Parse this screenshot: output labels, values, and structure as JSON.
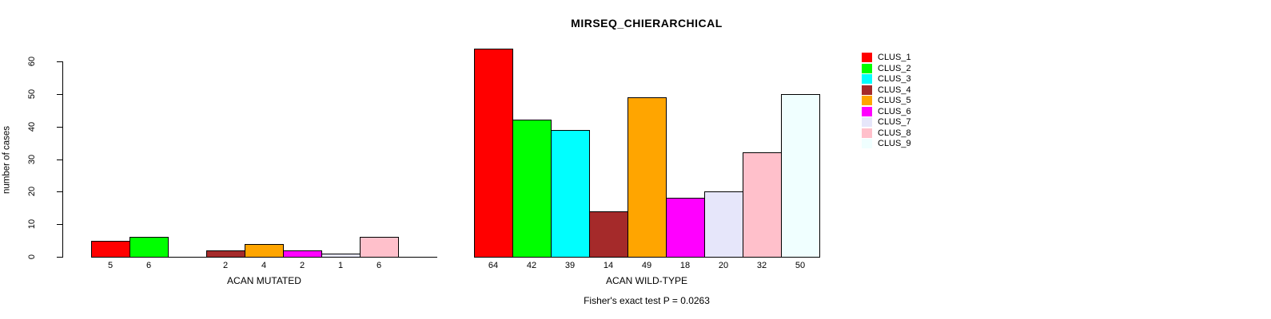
{
  "title": "MIRSEQ_CHIERARCHICAL",
  "chart_data": {
    "type": "bar",
    "title": "MIRSEQ_CHIERARCHICAL",
    "ylabel": "number of cases",
    "ylim": [
      0,
      60
    ],
    "yticks": [
      0,
      10,
      20,
      30,
      40,
      50,
      60
    ],
    "grid": false,
    "legend_position": "right",
    "legend": [
      {
        "name": "CLUS_1",
        "color": "#FF0000"
      },
      {
        "name": "CLUS_2",
        "color": "#00FF00"
      },
      {
        "name": "CLUS_3",
        "color": "#00FFFF"
      },
      {
        "name": "CLUS_4",
        "color": "#A52A2A"
      },
      {
        "name": "CLUS_5",
        "color": "#FFA500"
      },
      {
        "name": "CLUS_6",
        "color": "#FF00FF"
      },
      {
        "name": "CLUS_7",
        "color": "#E6E6FA"
      },
      {
        "name": "CLUS_8",
        "color": "#FFC0CB"
      },
      {
        "name": "CLUS_9",
        "color": "#F0FFFF"
      }
    ],
    "panels": [
      {
        "xlabel": "ACAN MUTATED",
        "categories": [
          "CLUS_1",
          "CLUS_2",
          "CLUS_3",
          "CLUS_4",
          "CLUS_5",
          "CLUS_6",
          "CLUS_7",
          "CLUS_8",
          "CLUS_9"
        ],
        "values": [
          5,
          6,
          0,
          2,
          4,
          2,
          1,
          6,
          0
        ],
        "bar_labels": [
          "5",
          "6",
          "",
          "2",
          "4",
          "2",
          "1",
          "6",
          ""
        ]
      },
      {
        "xlabel": "ACAN WILD-TYPE",
        "categories": [
          "CLUS_1",
          "CLUS_2",
          "CLUS_3",
          "CLUS_4",
          "CLUS_5",
          "CLUS_6",
          "CLUS_7",
          "CLUS_8",
          "CLUS_9"
        ],
        "values": [
          64,
          42,
          39,
          14,
          49,
          18,
          20,
          32,
          50
        ],
        "bar_labels": [
          "64",
          "42",
          "39",
          "14",
          "49",
          "18",
          "20",
          "32",
          "50"
        ]
      }
    ],
    "annotation": "Fisher's exact test P = 0.0263"
  }
}
